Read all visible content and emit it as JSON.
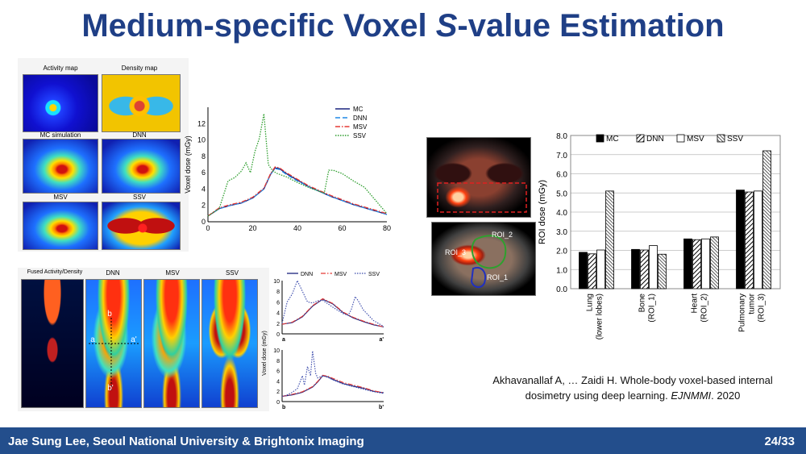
{
  "title_parts": [
    "Medium-specific Voxel ",
    "S",
    "-value Estimation"
  ],
  "footer": {
    "author": "Jae Sung Lee, Seoul National University & Brightonix Imaging",
    "page": "24/33"
  },
  "citation": {
    "line1": "Akhavanallaf A, … Zaidi H. Whole-body voxel-based internal",
    "line2a": "dosimetry using deep learning. ",
    "line2b": "EJNMMI",
    "line2c": ". 2020"
  },
  "maps_top": [
    "Activity map",
    "Density map",
    "MC simulation",
    "DNN",
    "MSV",
    "SSV"
  ],
  "maps_bottom": [
    "Fused Activity/Density",
    "DNN",
    "MSV",
    "SSV"
  ],
  "marks": {
    "a": "a",
    "a2": "a'",
    "b": "b",
    "b2": "b'"
  },
  "roi_labels": [
    "ROI_2",
    "ROI_3",
    "ROI_1"
  ],
  "colors": {
    "MC": "#1a237e",
    "DNN": "#1e88e5",
    "MSV": "#e53935",
    "SSV": "#2e9e2e",
    "title": "#1f3f86",
    "footer": "#234e8c"
  },
  "chart_data": [
    {
      "type": "line",
      "ylabel": "Voxel dose (mGy)",
      "xlim": [
        0,
        80
      ],
      "ylim": [
        0,
        14
      ],
      "xticks": [
        0,
        20,
        40,
        60,
        80
      ],
      "yticks": [
        0,
        2,
        4,
        6,
        8,
        10,
        12
      ],
      "legend_position": "top-right",
      "series": [
        {
          "name": "MC",
          "style": "solid",
          "color": "#1a237e",
          "x": [
            0,
            5,
            10,
            15,
            20,
            25,
            28,
            30,
            32,
            35,
            40,
            45,
            50,
            55,
            60,
            65,
            70,
            75,
            80
          ],
          "y": [
            0.7,
            1.6,
            2.0,
            2.3,
            2.9,
            4.0,
            5.8,
            6.6,
            6.5,
            5.9,
            5.1,
            4.3,
            3.7,
            3.1,
            2.6,
            2.1,
            1.7,
            1.3,
            0.9
          ]
        },
        {
          "name": "DNN",
          "style": "dashed",
          "color": "#1e88e5",
          "x": [
            0,
            5,
            10,
            15,
            20,
            25,
            28,
            30,
            32,
            35,
            40,
            45,
            50,
            55,
            60,
            65,
            70,
            75,
            80
          ],
          "y": [
            0.7,
            1.6,
            2.0,
            2.3,
            2.9,
            4.0,
            5.8,
            6.5,
            6.4,
            5.8,
            5.0,
            4.3,
            3.7,
            3.1,
            2.6,
            2.1,
            1.7,
            1.3,
            0.9
          ]
        },
        {
          "name": "MSV",
          "style": "dashdot",
          "color": "#e53935",
          "x": [
            0,
            5,
            10,
            15,
            20,
            25,
            28,
            30,
            32,
            35,
            40,
            45,
            50,
            55,
            60,
            65,
            70,
            75,
            80
          ],
          "y": [
            0.7,
            1.7,
            2.1,
            2.4,
            3.0,
            4.1,
            5.9,
            6.7,
            6.6,
            6.0,
            5.2,
            4.4,
            3.8,
            3.2,
            2.7,
            2.2,
            1.8,
            1.4,
            1.0
          ]
        },
        {
          "name": "SSV",
          "style": "dotted",
          "color": "#2e9e2e",
          "x": [
            0,
            5,
            9,
            12,
            15,
            17,
            19,
            21,
            23,
            25,
            26,
            27,
            29,
            31,
            35,
            40,
            45,
            50,
            52,
            54,
            56,
            60,
            65,
            70,
            75,
            80
          ],
          "y": [
            0.7,
            1.6,
            5.0,
            5.4,
            6.2,
            7.2,
            6.0,
            8.6,
            10.2,
            13.2,
            10.0,
            7.0,
            6.2,
            5.9,
            5.5,
            4.8,
            4.2,
            3.7,
            3.5,
            6.3,
            6.3,
            5.9,
            5.0,
            4.2,
            2.6,
            1.0
          ]
        }
      ]
    },
    {
      "type": "line",
      "ylabel": "Voxel dose (mGy)",
      "xlabels": [
        "a",
        "a'"
      ],
      "ylim": [
        0,
        10
      ],
      "yticks": [
        0,
        2,
        4,
        6,
        8,
        10
      ],
      "series": [
        {
          "name": "DNN",
          "style": "solid",
          "color": "#1a237e",
          "x": [
            0,
            0.1,
            0.2,
            0.3,
            0.4,
            0.5,
            0.6,
            0.7,
            0.8,
            0.9,
            1.0
          ],
          "y": [
            1.8,
            2.1,
            3.2,
            5.2,
            6.5,
            5.6,
            4.0,
            3.0,
            2.3,
            1.7,
            1.3
          ]
        },
        {
          "name": "MSV",
          "style": "dashdot",
          "color": "#e53935",
          "x": [
            0,
            0.1,
            0.2,
            0.3,
            0.4,
            0.5,
            0.6,
            0.7,
            0.8,
            0.9,
            1.0
          ],
          "y": [
            1.8,
            2.2,
            3.3,
            5.3,
            6.6,
            5.7,
            4.1,
            3.1,
            2.4,
            1.8,
            1.3
          ]
        },
        {
          "name": "SSV",
          "style": "dotted",
          "color": "#3949ab",
          "x": [
            0,
            0.05,
            0.1,
            0.15,
            0.2,
            0.25,
            0.3,
            0.35,
            0.4,
            0.5,
            0.6,
            0.65,
            0.68,
            0.72,
            0.75,
            0.8,
            0.9,
            1.0
          ],
          "y": [
            2.0,
            6.0,
            7.5,
            10.0,
            8.0,
            6.0,
            5.8,
            6.2,
            6.3,
            5.0,
            3.8,
            3.5,
            4.5,
            7.0,
            6.2,
            4.5,
            2.5,
            1.4
          ]
        }
      ]
    },
    {
      "type": "line",
      "xlabels": [
        "b",
        "b'"
      ],
      "ylim": [
        0,
        10
      ],
      "yticks": [
        0,
        2,
        4,
        6,
        8,
        10
      ],
      "series": [
        {
          "name": "DNN",
          "style": "solid",
          "color": "#1a237e",
          "x": [
            0,
            0.1,
            0.2,
            0.3,
            0.35,
            0.4,
            0.45,
            0.5,
            0.6,
            0.7,
            0.8,
            0.9,
            1.0
          ],
          "y": [
            1.0,
            1.3,
            1.8,
            2.8,
            3.8,
            5.0,
            4.8,
            4.3,
            3.5,
            3.0,
            2.6,
            2.0,
            1.7
          ]
        },
        {
          "name": "MSV",
          "style": "dashdot",
          "color": "#e53935",
          "x": [
            0,
            0.1,
            0.2,
            0.3,
            0.35,
            0.4,
            0.45,
            0.5,
            0.6,
            0.7,
            0.8,
            0.9,
            1.0
          ],
          "y": [
            1.0,
            1.4,
            1.9,
            2.9,
            3.9,
            5.1,
            4.9,
            4.5,
            3.7,
            3.2,
            2.7,
            2.1,
            1.7
          ]
        },
        {
          "name": "SSV",
          "style": "dotted",
          "color": "#3949ab",
          "x": [
            0,
            0.05,
            0.1,
            0.15,
            0.2,
            0.22,
            0.25,
            0.28,
            0.3,
            0.33,
            0.35,
            0.4,
            0.45,
            0.5,
            0.6,
            0.7,
            0.8,
            0.9,
            1.0
          ],
          "y": [
            1.0,
            1.3,
            1.8,
            2.5,
            5.0,
            3.2,
            6.8,
            5.0,
            9.8,
            5.5,
            4.6,
            5.0,
            4.7,
            4.2,
            3.4,
            2.9,
            2.4,
            1.9,
            1.6
          ]
        }
      ]
    },
    {
      "type": "bar",
      "ylabel": "ROI dose (mGy)",
      "ylim": [
        0,
        8
      ],
      "yticks": [
        "0.0",
        "1.0",
        "2.0",
        "3.0",
        "4.0",
        "5.0",
        "6.0",
        "7.0",
        "8.0"
      ],
      "legend_position": "top",
      "categories": [
        [
          "Lung",
          "(lower lobes)"
        ],
        [
          "Bone",
          "(ROI_1)"
        ],
        [
          "Heart",
          "(ROI_2)"
        ],
        [
          "Pulmonary",
          "tumor",
          "(ROI_3)"
        ]
      ],
      "series": [
        {
          "name": "MC",
          "fill": "solid-black",
          "values": [
            1.9,
            2.05,
            2.6,
            5.15
          ]
        },
        {
          "name": "DNN",
          "fill": "hatch",
          "values": [
            1.82,
            2.02,
            2.56,
            5.05
          ]
        },
        {
          "name": "MSV",
          "fill": "white",
          "values": [
            2.02,
            2.25,
            2.6,
            5.1
          ]
        },
        {
          "name": "SSV",
          "fill": "dense-hatch",
          "values": [
            5.1,
            1.8,
            2.7,
            7.2
          ]
        }
      ]
    }
  ]
}
